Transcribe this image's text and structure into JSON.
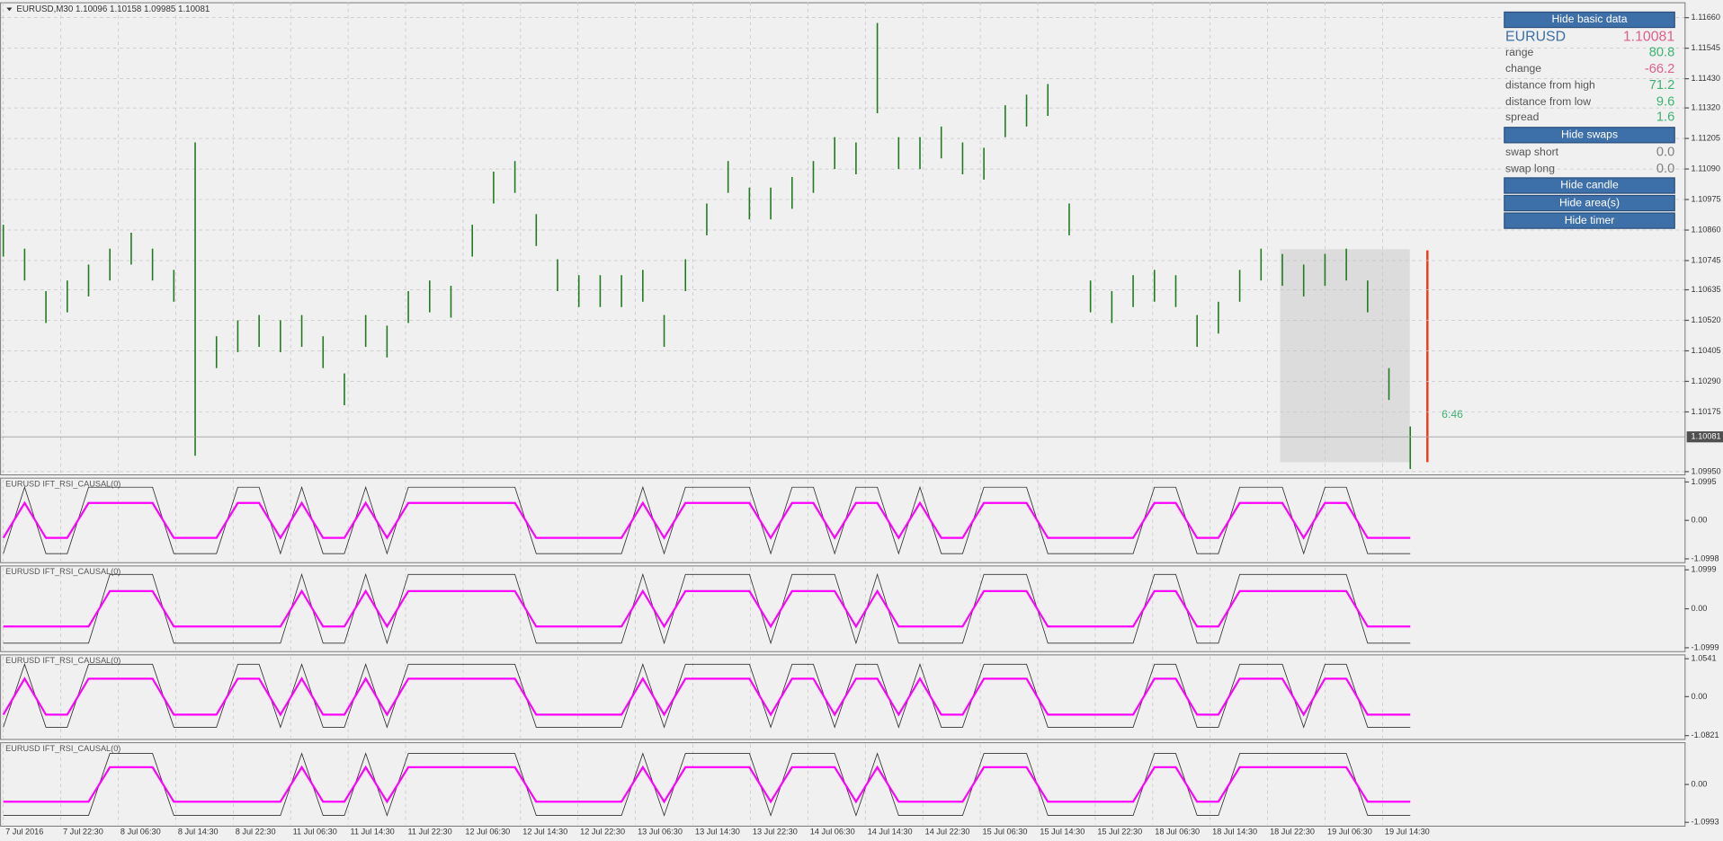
{
  "header": {
    "text": "EURUSD,M30  1.10096 1.10158 1.09985 1.10081"
  },
  "panel": {
    "items": [
      {
        "button": "Hide basic data"
      },
      {
        "label": "EURUSD",
        "value": "1.10081",
        "color": "#e0608a"
      },
      {
        "label": "range",
        "value": "80.8",
        "color": "#3cb371"
      },
      {
        "label": "change",
        "value": "-66.2",
        "color": "#e0608a"
      },
      {
        "label": "distance from high",
        "value": "71.2",
        "color": "#3cb371"
      },
      {
        "label": "distance from low",
        "value": "9.6",
        "color": "#3cb371"
      },
      {
        "label": "spread",
        "value": "1.6",
        "color": "#3cb371"
      },
      {
        "button": "Hide swaps"
      },
      {
        "label": "swap short",
        "value": "0.0",
        "color": "#808080"
      },
      {
        "label": "swap long",
        "value": "0.0",
        "color": "#808080"
      },
      {
        "button": "Hide candle"
      },
      {
        "button": "Hide area(s)"
      },
      {
        "button": "Hide timer"
      }
    ]
  },
  "timer": "6:46",
  "chart_data": [
    {
      "type": "ohlc",
      "title": "EURUSD,M30  1.10096 1.10158 1.09985 1.10081",
      "color": "#1e7b1e",
      "grid": true,
      "ylim": [
        1.0994,
        1.1171
      ],
      "yticks": [
        {
          "value": 1.1166,
          "label": "1.11660"
        },
        {
          "value": 1.11545,
          "label": "1.11545"
        },
        {
          "value": 1.1143,
          "label": "1.11430"
        },
        {
          "value": 1.1132,
          "label": "1.11320"
        },
        {
          "value": 1.11205,
          "label": "1.11205"
        },
        {
          "value": 1.1109,
          "label": "1.11090"
        },
        {
          "value": 1.10975,
          "label": "1.10975"
        },
        {
          "value": 1.1086,
          "label": "1.10860"
        },
        {
          "value": 1.10745,
          "label": "1.10745"
        },
        {
          "value": 1.10635,
          "label": "1.10635"
        },
        {
          "value": 1.1052,
          "label": "1.10520"
        },
        {
          "value": 1.10405,
          "label": "1.10405"
        },
        {
          "value": 1.1029,
          "label": "1.10290"
        },
        {
          "value": 1.10175,
          "label": "1.10175"
        },
        {
          "value": 1.0995,
          "label": "1.09950"
        }
      ],
      "current": {
        "value": 1.10081,
        "label": "1.10081"
      },
      "xtick_labels": [
        "7 Jul 2016",
        "7 Jul 22:30",
        "8 Jul 06:30",
        "8 Jul 14:30",
        "8 Jul 22:30",
        "11 Jul 06:30",
        "11 Jul 14:30",
        "11 Jul 22:30",
        "12 Jul 06:30",
        "12 Jul 14:30",
        "12 Jul 22:30",
        "13 Jul 06:30",
        "13 Jul 14:30",
        "13 Jul 22:30",
        "14 Jul 06:30",
        "14 Jul 14:30",
        "14 Jul 22:30",
        "15 Jul 06:30",
        "15 Jul 14:30",
        "15 Jul 22:30",
        "18 Jul 06:30",
        "18 Jul 14:30",
        "18 Jul 22:30",
        "19 Jul 06:30",
        "19 Jul 14:30"
      ],
      "high": [
        1.1088,
        1.1079,
        1.1063,
        1.1067,
        1.1073,
        1.1079,
        1.1085,
        1.1079,
        1.1071,
        1.1119,
        1.1046,
        1.1052,
        1.1054,
        1.1052,
        1.1054,
        1.1046,
        1.1032,
        1.1054,
        1.105,
        1.1063,
        1.1067,
        1.1065,
        1.1088,
        1.1108,
        1.1112,
        1.1092,
        1.1075,
        1.1069,
        1.1069,
        1.1069,
        1.1071,
        1.1054,
        1.1075,
        1.1096,
        1.1112,
        1.1102,
        1.1102,
        1.1106,
        1.1112,
        1.1121,
        1.1119,
        1.1164,
        1.1121,
        1.1121,
        1.1125,
        1.1119,
        1.1117,
        1.1133,
        1.1137,
        1.1141,
        1.1096,
        1.1067,
        1.1063,
        1.1069,
        1.1071,
        1.1069,
        1.1054,
        1.1059,
        1.1071,
        1.1079,
        1.1077,
        1.1073,
        1.1077,
        1.1079,
        1.1067,
        1.1034,
        1.1012
      ],
      "low": [
        1.1076,
        1.1067,
        1.1051,
        1.1055,
        1.1061,
        1.1067,
        1.1073,
        1.1067,
        1.1059,
        1.1001,
        1.1034,
        1.104,
        1.1042,
        1.104,
        1.1042,
        1.1034,
        1.102,
        1.1042,
        1.1038,
        1.1051,
        1.1055,
        1.1053,
        1.1076,
        1.1096,
        1.11,
        1.108,
        1.1063,
        1.1057,
        1.1057,
        1.1057,
        1.1059,
        1.1042,
        1.1063,
        1.1084,
        1.11,
        1.109,
        1.109,
        1.1094,
        1.11,
        1.1109,
        1.1107,
        1.113,
        1.1109,
        1.1109,
        1.1113,
        1.1107,
        1.1105,
        1.1121,
        1.1125,
        1.1129,
        1.1084,
        1.1055,
        1.1051,
        1.1057,
        1.1059,
        1.1057,
        1.1042,
        1.1047,
        1.1059,
        1.1067,
        1.1065,
        1.1061,
        1.1065,
        1.1067,
        1.1055,
        1.1022,
        1.0996
      ]
    },
    {
      "type": "line",
      "title": "EURUSD IFT_RSI_CAUSAL(0)",
      "ylim": [
        -1.0998,
        1.0995
      ],
      "yticks": [
        1.0995,
        {
          "value": 0,
          "label": "0.00"
        },
        -1.0998
      ],
      "series": [
        {
          "color": "#333333",
          "values": [
            -0.95,
            0.95,
            -0.95,
            -0.95,
            0.95,
            0.95,
            0.95,
            0.95,
            -0.95,
            -0.95,
            -0.95,
            0.95,
            0.95,
            -0.95,
            0.95,
            -0.95,
            -0.95,
            0.95,
            -0.95,
            0.95,
            0.95,
            0.95,
            0.95,
            0.95,
            0.95,
            -0.95,
            -0.95,
            -0.95,
            -0.95,
            -0.95,
            0.95,
            -0.95,
            0.95,
            0.95,
            0.95,
            0.95,
            -0.95,
            0.95,
            0.95,
            -0.95,
            0.95,
            0.95,
            -0.95,
            0.95,
            -0.95,
            -0.95,
            0.95,
            0.95,
            0.95,
            -0.95,
            -0.95,
            -0.95,
            -0.95,
            -0.95,
            0.95,
            0.95,
            -0.95,
            -0.95,
            0.95,
            0.95,
            0.95,
            -0.95,
            0.95,
            0.95,
            -0.95,
            -0.95,
            -0.95
          ]
        },
        {
          "color": "#ff00ff",
          "values": [
            -0.5,
            0.5,
            -0.5,
            -0.5,
            0.5,
            0.5,
            0.5,
            0.5,
            -0.5,
            -0.5,
            -0.5,
            0.5,
            0.5,
            -0.5,
            0.5,
            -0.5,
            -0.5,
            0.5,
            -0.5,
            0.5,
            0.5,
            0.5,
            0.5,
            0.5,
            0.5,
            -0.5,
            -0.5,
            -0.5,
            -0.5,
            -0.5,
            0.5,
            -0.5,
            0.5,
            0.5,
            0.5,
            0.5,
            -0.5,
            0.5,
            0.5,
            -0.5,
            0.5,
            0.5,
            -0.5,
            0.5,
            -0.5,
            -0.5,
            0.5,
            0.5,
            0.5,
            -0.5,
            -0.5,
            -0.5,
            -0.5,
            -0.5,
            0.5,
            0.5,
            -0.5,
            -0.5,
            0.5,
            0.5,
            0.5,
            -0.5,
            0.5,
            0.5,
            -0.5,
            -0.5,
            -0.5
          ]
        }
      ]
    },
    {
      "type": "line",
      "title": "EURUSD IFT_RSI_CAUSAL(0)",
      "ylim": [
        -1.0999,
        1.0999
      ],
      "yticks": [
        1.0999,
        {
          "value": 0,
          "label": "0.00"
        },
        -1.0999
      ],
      "series": [
        {
          "color": "#333333",
          "values": [
            -0.97,
            -0.97,
            -0.97,
            -0.97,
            -0.97,
            0.97,
            0.97,
            0.97,
            -0.97,
            -0.97,
            -0.97,
            -0.97,
            -0.97,
            -0.97,
            0.97,
            -0.97,
            -0.97,
            0.97,
            -0.97,
            0.97,
            0.97,
            0.97,
            0.97,
            0.97,
            0.97,
            -0.97,
            -0.97,
            -0.97,
            -0.97,
            -0.97,
            0.97,
            -0.97,
            0.97,
            0.97,
            0.97,
            0.97,
            -0.97,
            0.97,
            0.97,
            0.97,
            -0.97,
            0.97,
            -0.97,
            -0.97,
            -0.97,
            -0.97,
            0.97,
            0.97,
            0.97,
            -0.97,
            -0.97,
            -0.97,
            -0.97,
            -0.97,
            0.97,
            0.97,
            -0.97,
            -0.97,
            0.97,
            0.97,
            0.97,
            0.97,
            0.97,
            0.97,
            -0.97,
            -0.97,
            -0.97
          ]
        },
        {
          "color": "#ff00ff",
          "values": [
            -0.5,
            -0.5,
            -0.5,
            -0.5,
            -0.5,
            0.5,
            0.5,
            0.5,
            -0.5,
            -0.5,
            -0.5,
            -0.5,
            -0.5,
            -0.5,
            0.5,
            -0.5,
            -0.5,
            0.5,
            -0.5,
            0.5,
            0.5,
            0.5,
            0.5,
            0.5,
            0.5,
            -0.5,
            -0.5,
            -0.5,
            -0.5,
            -0.5,
            0.5,
            -0.5,
            0.5,
            0.5,
            0.5,
            0.5,
            -0.5,
            0.5,
            0.5,
            0.5,
            -0.5,
            0.5,
            -0.5,
            -0.5,
            -0.5,
            -0.5,
            0.5,
            0.5,
            0.5,
            -0.5,
            -0.5,
            -0.5,
            -0.5,
            -0.5,
            0.5,
            0.5,
            -0.5,
            -0.5,
            0.5,
            0.5,
            0.5,
            0.5,
            0.5,
            0.5,
            -0.5,
            -0.5,
            -0.5
          ]
        }
      ]
    },
    {
      "type": "line",
      "title": "EURUSD IFT_RSI_CAUSAL(0)",
      "ylim": [
        -1.0821,
        1.0541
      ],
      "yticks": [
        1.0541,
        {
          "value": 0,
          "label": "0.00"
        },
        -1.0821
      ],
      "series": [
        {
          "color": "#333333",
          "values": [
            -0.85,
            0.9,
            -0.85,
            -0.85,
            0.9,
            0.9,
            0.9,
            0.9,
            -0.85,
            -0.85,
            -0.85,
            0.9,
            0.9,
            -0.85,
            0.9,
            -0.85,
            -0.85,
            0.9,
            -0.85,
            0.9,
            0.9,
            0.9,
            0.9,
            0.9,
            0.9,
            -0.85,
            -0.85,
            -0.85,
            -0.85,
            -0.85,
            0.9,
            -0.85,
            0.9,
            0.9,
            0.9,
            0.9,
            -0.85,
            0.9,
            0.9,
            -0.85,
            0.9,
            0.9,
            -0.85,
            0.9,
            -0.85,
            -0.85,
            0.9,
            0.9,
            0.9,
            -0.85,
            -0.85,
            -0.85,
            -0.85,
            -0.85,
            0.9,
            0.9,
            -0.85,
            -0.85,
            0.9,
            0.9,
            0.9,
            -0.85,
            0.9,
            0.9,
            -0.85,
            -0.85,
            -0.85
          ]
        },
        {
          "color": "#ff00ff",
          "values": [
            -0.5,
            0.5,
            -0.5,
            -0.5,
            0.5,
            0.5,
            0.5,
            0.5,
            -0.5,
            -0.5,
            -0.5,
            0.5,
            0.5,
            -0.5,
            0.5,
            -0.5,
            -0.5,
            0.5,
            -0.5,
            0.5,
            0.5,
            0.5,
            0.5,
            0.5,
            0.5,
            -0.5,
            -0.5,
            -0.5,
            -0.5,
            -0.5,
            0.5,
            -0.5,
            0.5,
            0.5,
            0.5,
            0.5,
            -0.5,
            0.5,
            0.5,
            -0.5,
            0.5,
            0.5,
            -0.5,
            0.5,
            -0.5,
            -0.5,
            0.5,
            0.5,
            0.5,
            -0.5,
            -0.5,
            -0.5,
            -0.5,
            -0.5,
            0.5,
            0.5,
            -0.5,
            -0.5,
            0.5,
            0.5,
            0.5,
            -0.5,
            0.5,
            0.5,
            -0.5,
            -0.5,
            -0.5
          ]
        }
      ]
    },
    {
      "type": "line",
      "title": "EURUSD IFT_RSI_CAUSAL(0)",
      "ylim": [
        -1.0993,
        1.0993
      ],
      "yticks": [
        {
          "value": 0,
          "label": "0.00"
        },
        -1.0993
      ],
      "series": [
        {
          "color": "#333333",
          "values": [
            -0.9,
            -0.9,
            -0.9,
            -0.9,
            -0.9,
            0.9,
            0.9,
            0.9,
            -0.9,
            -0.9,
            -0.9,
            -0.9,
            -0.9,
            -0.9,
            0.9,
            -0.9,
            -0.9,
            0.9,
            -0.9,
            0.9,
            0.9,
            0.9,
            0.9,
            0.9,
            0.9,
            -0.9,
            -0.9,
            -0.9,
            -0.9,
            -0.9,
            0.9,
            -0.9,
            0.9,
            0.9,
            0.9,
            0.9,
            -0.9,
            0.9,
            0.9,
            0.9,
            -0.9,
            0.9,
            -0.9,
            -0.9,
            -0.9,
            -0.9,
            0.9,
            0.9,
            0.9,
            -0.9,
            -0.9,
            -0.9,
            -0.9,
            -0.9,
            0.9,
            0.9,
            -0.9,
            -0.9,
            0.9,
            0.9,
            0.9,
            0.9,
            0.9,
            0.9,
            -0.9,
            -0.9,
            -0.9
          ]
        },
        {
          "color": "#ff00ff",
          "values": [
            -0.5,
            -0.5,
            -0.5,
            -0.5,
            -0.5,
            0.5,
            0.5,
            0.5,
            -0.5,
            -0.5,
            -0.5,
            -0.5,
            -0.5,
            -0.5,
            0.5,
            -0.5,
            -0.5,
            0.5,
            -0.5,
            0.5,
            0.5,
            0.5,
            0.5,
            0.5,
            0.5,
            -0.5,
            -0.5,
            -0.5,
            -0.5,
            -0.5,
            0.5,
            -0.5,
            0.5,
            0.5,
            0.5,
            0.5,
            -0.5,
            0.5,
            0.5,
            0.5,
            -0.5,
            0.5,
            -0.5,
            -0.5,
            -0.5,
            -0.5,
            0.5,
            0.5,
            0.5,
            -0.5,
            -0.5,
            -0.5,
            -0.5,
            -0.5,
            0.5,
            0.5,
            -0.5,
            -0.5,
            0.5,
            0.5,
            0.5,
            0.5,
            0.5,
            0.5,
            -0.5,
            -0.5,
            -0.5
          ]
        }
      ]
    }
  ]
}
